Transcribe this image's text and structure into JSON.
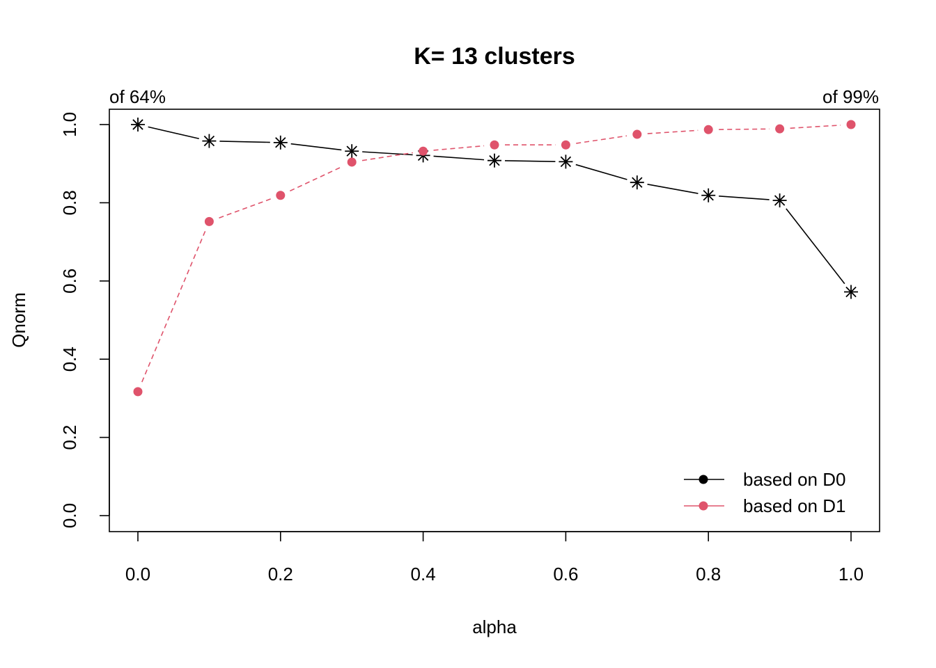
{
  "chart_data": {
    "type": "line",
    "title": "K= 13 clusters",
    "xlabel": "alpha",
    "ylabel": "Qnorm",
    "xlim": [
      0.0,
      1.0
    ],
    "ylim": [
      0.0,
      1.0
    ],
    "x": [
      0.0,
      0.1,
      0.2,
      0.3,
      0.4,
      0.5,
      0.6,
      0.7,
      0.8,
      0.9,
      1.0
    ],
    "x_ticks": [
      "0.0",
      "0.2",
      "0.4",
      "0.6",
      "0.8",
      "1.0"
    ],
    "y_ticks": [
      "0.0",
      "0.2",
      "0.4",
      "0.6",
      "0.8",
      "1.0"
    ],
    "annotations": {
      "top_left": "of 64%",
      "top_right": "of 99%"
    },
    "legend_position": "bottom-right",
    "grid": false,
    "series": [
      {
        "name": "based on D0",
        "color": "#000000",
        "line_style": "solid",
        "marker": "asterisk",
        "legend_marker": "filled-circle",
        "values": [
          1.0,
          0.958,
          0.954,
          0.932,
          0.921,
          0.908,
          0.905,
          0.852,
          0.819,
          0.806,
          0.572
        ]
      },
      {
        "name": "based on D1",
        "color": "#DF536B",
        "line_style": "dashed",
        "marker": "filled-circle",
        "legend_marker": "filled-circle",
        "values": [
          0.317,
          0.752,
          0.819,
          0.904,
          0.932,
          0.948,
          0.948,
          0.975,
          0.987,
          0.989,
          1.0
        ]
      }
    ]
  }
}
